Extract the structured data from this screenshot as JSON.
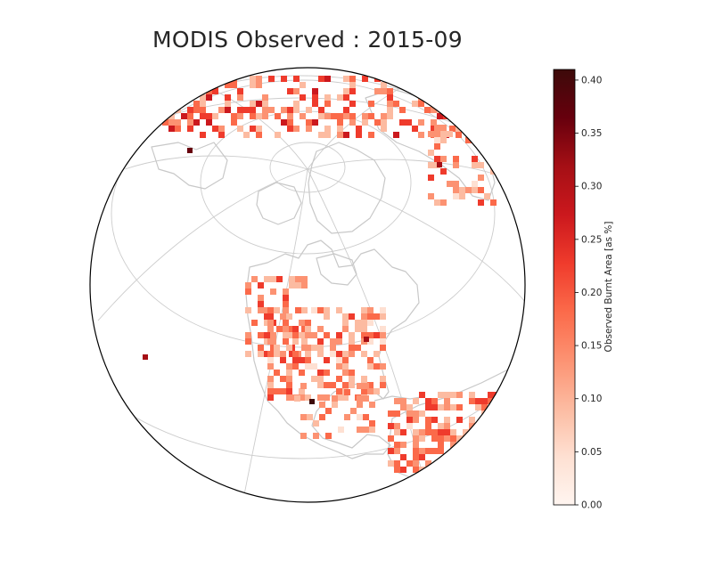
{
  "title": "MODIS Observed : 2015-09",
  "colorbar": {
    "label": "Observed Burnt Area [as %]",
    "min": 0,
    "max": 0.41,
    "ticks": [
      "0.00",
      "0.05",
      "0.10",
      "0.15",
      "0.20",
      "0.25",
      "0.30",
      "0.35",
      "0.40"
    ],
    "colors": [
      "#fff5f0",
      "#fee0d2",
      "#fcbba1",
      "#fc9272",
      "#fb6a4a",
      "#ef3b2c",
      "#cb181d",
      "#a50f15",
      "#67000d",
      "#3d0a0a"
    ]
  },
  "map": {
    "projection": "orthographic",
    "region": "North America and Arctic",
    "land_outline_color": "#c8c8c8",
    "graticule_color": "#cccccc"
  }
}
